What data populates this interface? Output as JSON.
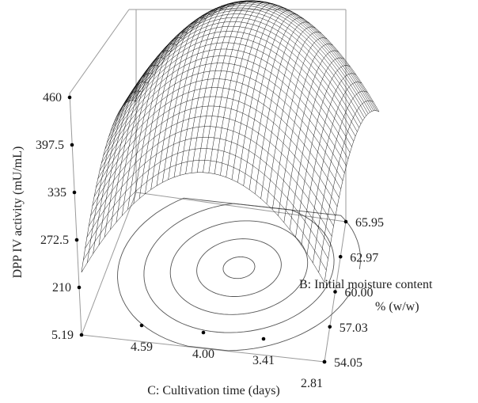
{
  "chart_data": {
    "type": "surface",
    "z_axis": {
      "label": "DPP IV activity (mU/mL)",
      "ticks": [
        "460",
        "397.5",
        "335",
        "272.5",
        "210",
        "5.19"
      ]
    },
    "c_axis": {
      "label": "C: Cultivation time (days)",
      "ticks": [
        "4.59",
        "4.00",
        "3.41",
        "2.81"
      ]
    },
    "b_axis": {
      "label_line1": "B: Initial moisture content",
      "label_line2": "% (w/w)",
      "ticks": [
        "54.05",
        "57.03",
        "60.00",
        "62.97",
        "65.95"
      ]
    },
    "surface": {
      "peak_c_days": 3.75,
      "peak_b_percent": 61.5,
      "peak_activity": 450
    },
    "contour_levels": 5
  }
}
